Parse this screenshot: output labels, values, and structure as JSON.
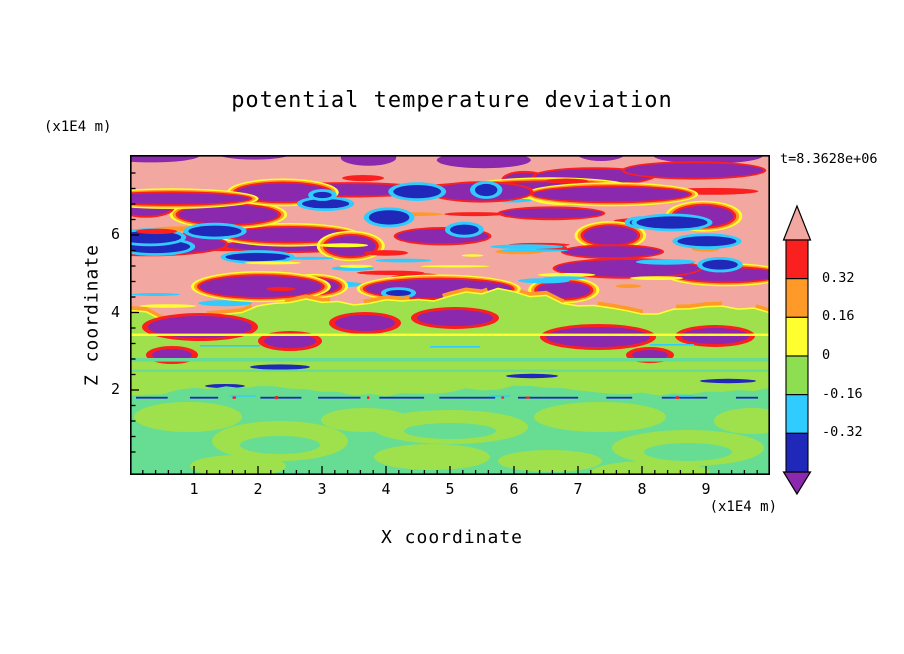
{
  "title": "potential temperature deviation",
  "time_label": "t=8.3628e+06",
  "axes": {
    "x_label": "X coordinate",
    "y_label": "Z coordinate",
    "x_unit": "(x1E4 m)",
    "y_unit": "(x1E4 m)",
    "x_ticks": [
      "1",
      "2",
      "3",
      "4",
      "5",
      "6",
      "7",
      "8",
      "9"
    ],
    "y_ticks": [
      "2",
      "4",
      "6"
    ]
  },
  "chart_data": {
    "type": "heatmap",
    "title": "potential temperature deviation",
    "xlabel": "X coordinate (x1E4 m)",
    "ylabel": "Z coordinate (x1E4 m)",
    "time": "t=8.3628e+06",
    "x_range": [
      0,
      10
    ],
    "z_range": [
      0,
      8.25
    ],
    "x_major_ticks": [
      1,
      2,
      3,
      4,
      5,
      6,
      7,
      8,
      9
    ],
    "x_minor_tick_step": 0.2,
    "z_major_ticks": [
      2,
      4,
      6
    ],
    "z_minor_tick_step": 0.4,
    "grid": false,
    "legend": "colorbar-right",
    "colorbar": {
      "orientation": "vertical",
      "boundary_labels": [
        "0.32",
        "0.16",
        "0",
        "-0.16",
        "-0.32"
      ],
      "levels": [
        0.48,
        0.32,
        0.16,
        0,
        -0.16,
        -0.32,
        -0.48
      ],
      "segment_colors_top_to_bottom": [
        "#fb2020",
        "#ff9a28",
        "#ffff30",
        "#8ede52",
        "#30ccff",
        "#1f28b8"
      ],
      "over_color": "#f2a8a0",
      "under_color": "#8a28ae"
    },
    "field_summary": {
      "upper_layer": "z ~ 4.2 to 8.2: strongly turbulent; interleaved over-range (salmon, >0.48) and under-range (purple, <-0.48) elongated anomalies fringed by thin red/orange/yellow and cyan/navy filaments",
      "middle_layer": "z ~ 2 to 4.2: weakly positive (yellow-green) with a thin continuous yellow filament near z=3.5, scattered purple/navy patches below the upper-layer boundary, and faint light-green horizontal stripes near z=2.7",
      "lower_layer": "z ~ 0 to 2: weakly negative quiescent layer (light green) marbled with yellow-green convective swirls and a broken thin navy filament along z=2"
    }
  },
  "field_colors": {
    "salmon": "#f2a8a0",
    "purple": "#8a28ae",
    "red": "#fb2020",
    "orange": "#ff9a28",
    "yellow": "#ffff30",
    "chartreuse": "#9fe14c",
    "spring_green": "#66dd92",
    "cyan": "#30ccff",
    "navy": "#1f28b8"
  },
  "figure_background": "#ffffff"
}
